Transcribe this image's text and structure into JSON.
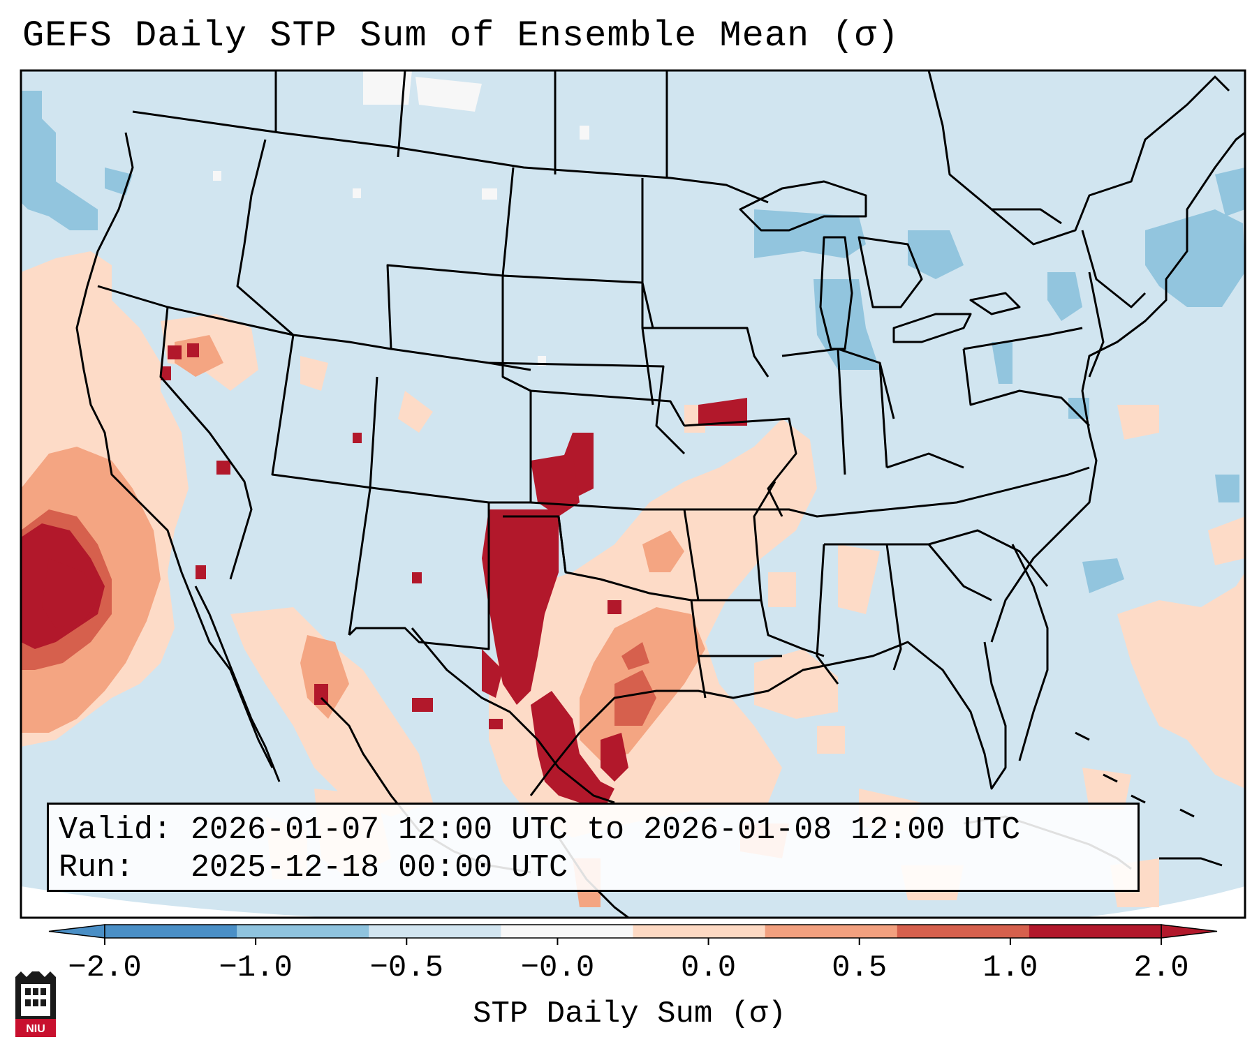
{
  "title": "GEFS Daily STP Sum of Ensemble Mean (σ)",
  "info": {
    "valid_label": "Valid:",
    "valid_value": "2026-01-07 12:00 UTC to 2026-01-08 12:00 UTC",
    "run_label": "Run:",
    "run_value": "2025-12-18 00:00 UTC"
  },
  "colorbar": {
    "label": "STP Daily Sum (σ)",
    "tick_labels": [
      "−2.0",
      "−1.0",
      "−0.5",
      "−0.0",
      "0.0",
      "0.5",
      "1.0",
      "2.0"
    ],
    "colors": [
      "#4a8fc6",
      "#8fc3de",
      "#d2e5f0",
      "#f7f7f7",
      "#fdd9c3",
      "#f2a07f",
      "#d6604d",
      "#b2182b"
    ],
    "extend": "both"
  },
  "logo": {
    "text": "NIU",
    "name": "niu-logo"
  },
  "map_colors": {
    "background": "#d1e5f0",
    "neg_light": "#92c5de",
    "pos_light": "#fddbc7",
    "pos_mid": "#f4a582",
    "pos_high": "#d6604d",
    "pos_max": "#b2182b"
  }
}
